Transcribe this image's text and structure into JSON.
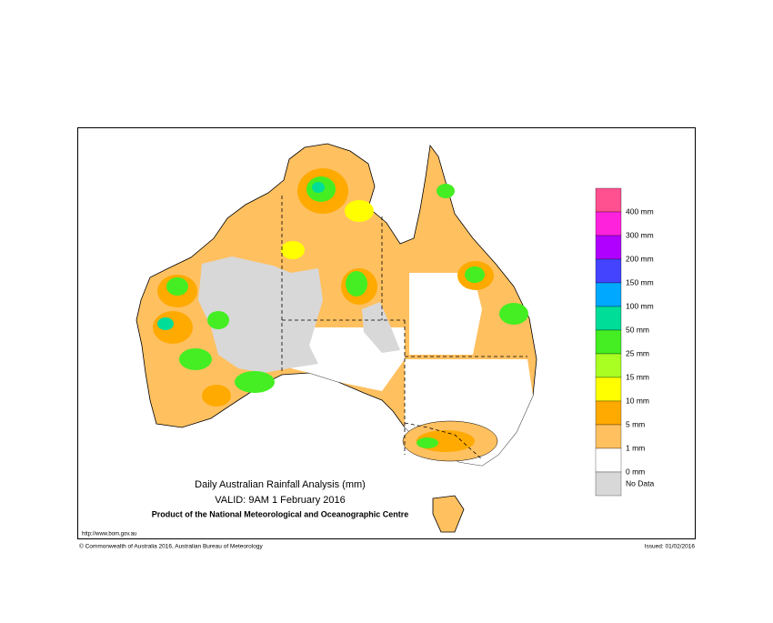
{
  "map": {
    "title": "Daily Australian Rainfall Analysis (mm)",
    "valid": "VALID: 9AM  1 February 2016",
    "product": "Product of the National Meteorological and Oceanographic Centre",
    "url": "http://www.bom.gov.au",
    "copyright": "© Commonwealth of Australia 2016, Australian Bureau of Meteorology",
    "issued": "Issued: 01/02/2016",
    "legend": {
      "colors": [
        "#ff5090",
        "#ff22dd",
        "#b000ff",
        "#4444ff",
        "#00a8ff",
        "#00dd99",
        "#44ee22",
        "#aaff22",
        "#ffff00",
        "#ffaa00",
        "#ffc060",
        "#ffffff",
        "#d8d8d8"
      ],
      "labels": [
        "400 mm",
        "300 mm",
        "200 mm",
        "150 mm",
        "100 mm",
        "50 mm",
        "25 mm",
        "15 mm",
        "10 mm",
        "5 mm",
        "1 mm",
        "0 mm",
        "No Data"
      ]
    }
  }
}
